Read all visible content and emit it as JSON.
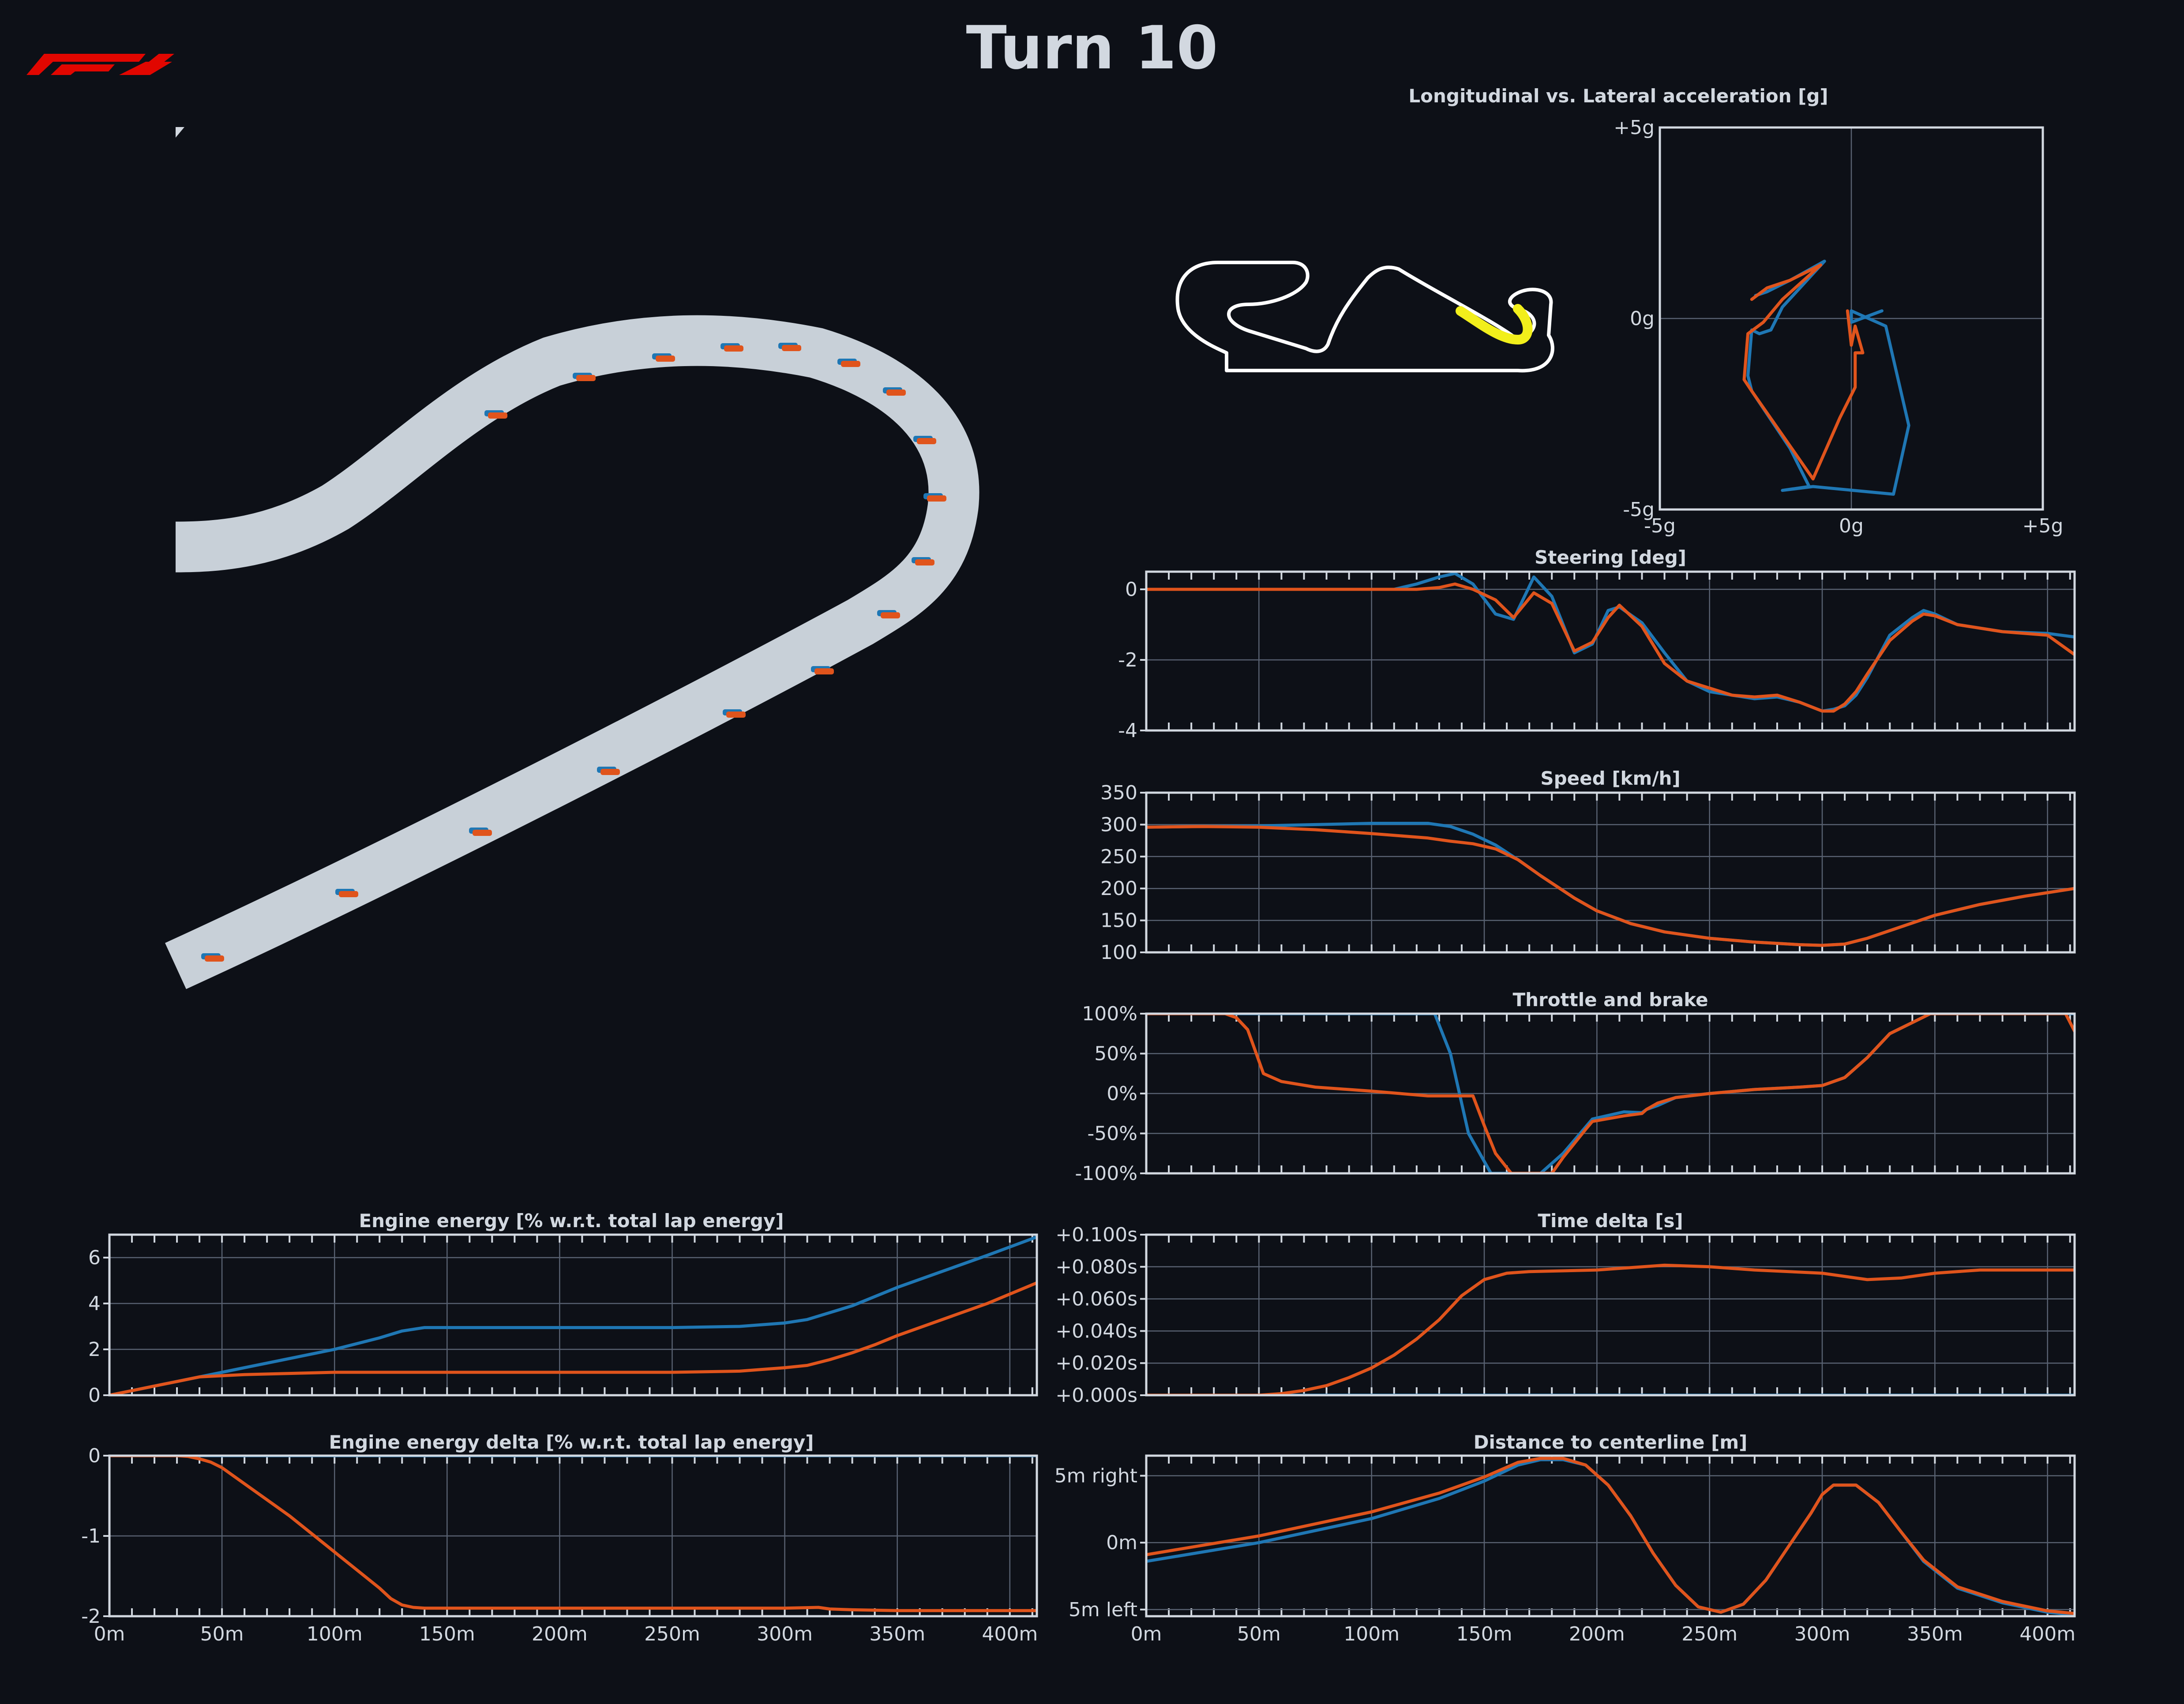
{
  "page": {
    "title": "Turn 10",
    "logo": "f1-logo"
  },
  "colors": {
    "background": "#0d1017",
    "text": "#d2d8e0",
    "driver_a": "#1f77b4",
    "driver_b": "#e0541c",
    "track": "#c8d0d8",
    "highlight": "#f2ef1b"
  },
  "chart_data": [
    {
      "id": "gg",
      "type": "line",
      "title": "Longitudinal vs. Lateral acceleration [g]",
      "xlabel": "",
      "ylabel": "",
      "xlim": [
        -5,
        5
      ],
      "ylim": [
        -5,
        5
      ],
      "x_ticks": [
        "-5g",
        "0g",
        "+5g"
      ],
      "y_ticks": [
        "+5g",
        "0g",
        "-5g"
      ],
      "grid": true,
      "series": [
        {
          "color": "#1f77b4",
          "x": [
            -2.5,
            -2.2,
            -1.6,
            -0.7,
            -1.8,
            -2.1,
            -2.4,
            -2.6,
            -2.7,
            -2.6,
            -1.6,
            -1.1,
            -1.8,
            -1.0,
            1.1,
            1.5,
            0.9,
            0.0,
            0.0,
            0.8
          ],
          "y": [
            0.6,
            0.7,
            1.0,
            1.5,
            0.3,
            -0.3,
            -0.4,
            -0.3,
            -1.5,
            -1.9,
            -3.4,
            -4.4,
            -4.5,
            -4.4,
            -4.6,
            -2.8,
            -0.2,
            0.2,
            -0.1,
            0.2
          ]
        },
        {
          "color": "#e0541c",
          "x": [
            -2.6,
            -2.2,
            -1.6,
            -0.8,
            -1.8,
            -2.3,
            -2.7,
            -2.8,
            -2.6,
            -1.0,
            -0.3,
            0.1,
            0.1,
            0.3,
            0.1,
            0.0,
            -0.1
          ],
          "y": [
            0.5,
            0.8,
            1.0,
            1.4,
            0.5,
            -0.1,
            -0.4,
            -1.6,
            -1.9,
            -4.2,
            -2.6,
            -1.8,
            -0.9,
            -0.9,
            -0.2,
            -0.7,
            0.2
          ]
        }
      ]
    },
    {
      "id": "steering",
      "type": "line",
      "title": "Steering [deg]",
      "xlabel": "",
      "ylabel": "",
      "xlim": [
        0,
        412
      ],
      "ylim": [
        -4,
        0.5
      ],
      "y_ticks": [
        0,
        -2,
        -4
      ],
      "y_tick_labels": [
        "0",
        "-2",
        "-4"
      ],
      "grid": true,
      "series": [
        {
          "color": "#1f77b4",
          "x": [
            0,
            100,
            110,
            120,
            130,
            137,
            145,
            155,
            163,
            172,
            180,
            190,
            198,
            205,
            210,
            220,
            230,
            240,
            250,
            260,
            270,
            280,
            290,
            300,
            305,
            310,
            315,
            320,
            330,
            340,
            345,
            350,
            360,
            380,
            400,
            412
          ],
          "y": [
            0,
            0,
            0,
            0.15,
            0.35,
            0.45,
            0.15,
            -0.7,
            -0.85,
            0.35,
            -0.2,
            -1.8,
            -1.55,
            -0.6,
            -0.5,
            -0.95,
            -1.8,
            -2.6,
            -2.9,
            -3.0,
            -3.1,
            -3.05,
            -3.2,
            -3.45,
            -3.4,
            -3.3,
            -3.0,
            -2.5,
            -1.3,
            -0.8,
            -0.6,
            -0.7,
            -1.0,
            -1.2,
            -1.25,
            -1.35
          ]
        },
        {
          "color": "#e0541c",
          "x": [
            0,
            100,
            110,
            120,
            130,
            137,
            145,
            155,
            163,
            172,
            180,
            190,
            198,
            205,
            210,
            220,
            230,
            240,
            250,
            260,
            270,
            280,
            290,
            300,
            305,
            310,
            315,
            320,
            330,
            340,
            345,
            350,
            360,
            380,
            400,
            412
          ],
          "y": [
            0,
            0,
            0,
            0,
            0.05,
            0.15,
            0.0,
            -0.3,
            -0.8,
            -0.1,
            -0.4,
            -1.75,
            -1.5,
            -0.8,
            -0.45,
            -1.05,
            -2.1,
            -2.6,
            -2.8,
            -3.0,
            -3.05,
            -3.0,
            -3.2,
            -3.45,
            -3.45,
            -3.25,
            -2.9,
            -2.4,
            -1.45,
            -0.9,
            -0.7,
            -0.75,
            -1.0,
            -1.2,
            -1.3,
            -1.85
          ]
        }
      ]
    },
    {
      "id": "speed",
      "type": "line",
      "title": "Speed [km/h]",
      "xlabel": "",
      "ylabel": "",
      "xlim": [
        0,
        412
      ],
      "ylim": [
        100,
        350
      ],
      "y_ticks": [
        350,
        300,
        250,
        200,
        150,
        100
      ],
      "y_tick_labels": [
        "350",
        "300",
        "250",
        "200",
        "150",
        "100"
      ],
      "grid": true,
      "series": [
        {
          "color": "#1f77b4",
          "x": [
            0,
            25,
            50,
            75,
            100,
            125,
            135,
            145,
            155,
            165,
            175,
            190,
            200,
            215,
            230,
            250,
            270,
            290,
            300,
            310,
            320,
            335,
            350,
            370,
            390,
            412
          ],
          "y": [
            296,
            297,
            298,
            300,
            302,
            302,
            297,
            285,
            268,
            245,
            220,
            185,
            165,
            145,
            132,
            122,
            116,
            112,
            111,
            113,
            122,
            140,
            158,
            175,
            188,
            200
          ]
        },
        {
          "color": "#e0541c",
          "x": [
            0,
            25,
            50,
            75,
            100,
            125,
            135,
            145,
            155,
            165,
            175,
            190,
            200,
            215,
            230,
            250,
            270,
            290,
            300,
            310,
            320,
            335,
            350,
            370,
            390,
            412
          ],
          "y": [
            296,
            297,
            296,
            292,
            286,
            279,
            274,
            270,
            262,
            245,
            220,
            185,
            165,
            145,
            132,
            122,
            116,
            112,
            111,
            113,
            122,
            140,
            158,
            175,
            188,
            200
          ]
        }
      ]
    },
    {
      "id": "throttle",
      "type": "line",
      "title": "Throttle and brake",
      "xlabel": "",
      "ylabel": "",
      "xlim": [
        0,
        412
      ],
      "ylim": [
        -100,
        100
      ],
      "y_ticks": [
        100,
        50,
        0,
        -50,
        -100
      ],
      "y_tick_labels": [
        "100%",
        "50%",
        "0%",
        "-50%",
        "-100%"
      ],
      "grid": true,
      "series": [
        {
          "color": "#1f77b4",
          "x": [
            0,
            128,
            135,
            143,
            153,
            165,
            175,
            185,
            198,
            212,
            220,
            222,
            227,
            235,
            250,
            270,
            290,
            300,
            310,
            320,
            330,
            348,
            412
          ],
          "y": [
            100,
            100,
            50,
            -50,
            -100,
            -100,
            -100,
            -75,
            -32,
            -23,
            -24,
            -20,
            -15,
            -5,
            0,
            5,
            8,
            10,
            20,
            45,
            75,
            100,
            100
          ]
        },
        {
          "color": "#e0541c",
          "x": [
            0,
            28,
            35,
            40,
            45,
            52,
            60,
            75,
            100,
            125,
            145,
            150,
            155,
            162,
            168,
            180,
            185,
            195,
            198,
            212,
            220,
            222,
            227,
            235,
            250,
            270,
            290,
            300,
            310,
            320,
            330,
            348,
            390,
            408,
            412
          ],
          "y": [
            100,
            100,
            100,
            95,
            80,
            25,
            15,
            8,
            3,
            -3,
            -3,
            -40,
            -75,
            -100,
            -100,
            -100,
            -80,
            -45,
            -35,
            -28,
            -25,
            -20,
            -12,
            -5,
            0,
            5,
            8,
            10,
            20,
            45,
            75,
            100,
            100,
            100,
            78
          ]
        }
      ]
    },
    {
      "id": "time_delta",
      "type": "line",
      "title": "Time delta [s]",
      "xlabel": "",
      "ylabel": "",
      "xlim": [
        0,
        412
      ],
      "ylim": [
        0,
        0.1
      ],
      "y_ticks": [
        0.1,
        0.08,
        0.06,
        0.04,
        0.02,
        0.0
      ],
      "y_tick_labels": [
        "+0.100s",
        "+0.080s",
        "+0.060s",
        "+0.040s",
        "+0.020s",
        "+0.000s"
      ],
      "grid": true,
      "series": [
        {
          "color": "#1f77b4",
          "x": [
            0,
            412
          ],
          "y": [
            0,
            0
          ]
        },
        {
          "color": "#e0541c",
          "x": [
            0,
            50,
            60,
            70,
            80,
            90,
            100,
            110,
            120,
            130,
            140,
            150,
            160,
            170,
            200,
            230,
            250,
            270,
            300,
            320,
            335,
            350,
            370,
            390,
            412
          ],
          "y": [
            0,
            0,
            0.001,
            0.003,
            0.006,
            0.011,
            0.017,
            0.025,
            0.035,
            0.047,
            0.062,
            0.072,
            0.076,
            0.077,
            0.078,
            0.081,
            0.08,
            0.078,
            0.076,
            0.072,
            0.073,
            0.076,
            0.078,
            0.078,
            0.078
          ]
        }
      ]
    },
    {
      "id": "engine_energy",
      "type": "line",
      "title": "Engine energy [% w.r.t. total lap energy]",
      "xlabel": "",
      "ylabel": "",
      "xlim": [
        0,
        412
      ],
      "ylim": [
        0,
        7
      ],
      "y_ticks": [
        6,
        4,
        2,
        0
      ],
      "y_tick_labels": [
        "6",
        "4",
        "2",
        "0"
      ],
      "grid": true,
      "series": [
        {
          "color": "#1f77b4",
          "x": [
            0,
            20,
            40,
            60,
            80,
            100,
            120,
            130,
            140,
            150,
            200,
            250,
            280,
            300,
            310,
            320,
            330,
            340,
            350,
            370,
            390,
            412
          ],
          "y": [
            0,
            0.4,
            0.8,
            1.2,
            1.6,
            2.0,
            2.5,
            2.8,
            2.95,
            2.95,
            2.95,
            2.95,
            3.0,
            3.15,
            3.3,
            3.6,
            3.9,
            4.3,
            4.7,
            5.4,
            6.1,
            6.9
          ]
        },
        {
          "color": "#e0541c",
          "x": [
            0,
            20,
            40,
            60,
            80,
            100,
            150,
            200,
            250,
            280,
            300,
            310,
            320,
            330,
            340,
            350,
            370,
            390,
            412
          ],
          "y": [
            0,
            0.4,
            0.8,
            0.9,
            0.95,
            1.0,
            1.0,
            1.0,
            1.0,
            1.05,
            1.2,
            1.3,
            1.55,
            1.85,
            2.2,
            2.6,
            3.3,
            4.0,
            4.9
          ]
        }
      ]
    },
    {
      "id": "energy_delta",
      "type": "line",
      "title": "Engine energy delta [% w.r.t. total lap energy]",
      "xlabel": "",
      "ylabel": "",
      "xlim": [
        0,
        412
      ],
      "ylim": [
        -2,
        0
      ],
      "y_ticks": [
        0,
        -1,
        -2
      ],
      "y_tick_labels": [
        "0",
        "-1",
        "-2"
      ],
      "grid": true,
      "x_ticks": [
        0,
        50,
        100,
        150,
        200,
        250,
        300,
        350,
        400
      ],
      "x_tick_labels": [
        "0m",
        "50m",
        "100m",
        "150m",
        "200m",
        "250m",
        "300m",
        "350m",
        "400m"
      ],
      "series": [
        {
          "color": "#1f77b4",
          "x": [
            0,
            412
          ],
          "y": [
            0,
            0
          ]
        },
        {
          "color": "#e0541c",
          "x": [
            0,
            20,
            30,
            35,
            40,
            45,
            50,
            60,
            80,
            100,
            120,
            125,
            130,
            135,
            140,
            150,
            200,
            250,
            300,
            315,
            320,
            330,
            350,
            380,
            412
          ],
          "y": [
            0,
            0,
            0,
            -0.01,
            -0.04,
            -0.08,
            -0.15,
            -0.35,
            -0.75,
            -1.2,
            -1.65,
            -1.78,
            -1.86,
            -1.89,
            -1.9,
            -1.9,
            -1.9,
            -1.9,
            -1.9,
            -1.89,
            -1.91,
            -1.92,
            -1.93,
            -1.93,
            -1.93
          ]
        }
      ]
    },
    {
      "id": "centerline",
      "type": "line",
      "title": "Distance to centerline [m]",
      "xlabel": "",
      "ylabel": "",
      "xlim": [
        0,
        412
      ],
      "ylim": [
        -5.5,
        6.5
      ],
      "y_ticks": [
        5,
        0,
        -5
      ],
      "y_tick_labels": [
        "5m right",
        "0m",
        "5m left"
      ],
      "grid": true,
      "x_ticks": [
        0,
        50,
        100,
        150,
        200,
        250,
        300,
        350,
        400
      ],
      "x_tick_labels": [
        "0m",
        "50m",
        "100m",
        "150m",
        "200m",
        "250m",
        "300m",
        "350m",
        "400m"
      ],
      "series": [
        {
          "color": "#1f77b4",
          "x": [
            0,
            50,
            100,
            130,
            150,
            165,
            175,
            185,
            195,
            205,
            215,
            225,
            235,
            245,
            255,
            265,
            275,
            285,
            295,
            300,
            305,
            315,
            325,
            335,
            345,
            360,
            380,
            400,
            412
          ],
          "y": [
            -1.4,
            0,
            1.8,
            3.3,
            4.6,
            5.8,
            6.2,
            6.2,
            5.8,
            4.3,
            2.0,
            -0.8,
            -3.2,
            -4.8,
            -5.2,
            -4.6,
            -2.8,
            -0.3,
            2.2,
            3.6,
            4.3,
            4.3,
            3.0,
            0.8,
            -1.4,
            -3.4,
            -4.5,
            -5.2,
            -5.4
          ]
        },
        {
          "color": "#e0541c",
          "x": [
            0,
            50,
            100,
            130,
            150,
            165,
            175,
            185,
            195,
            205,
            215,
            225,
            235,
            245,
            255,
            265,
            275,
            285,
            295,
            300,
            305,
            315,
            325,
            335,
            345,
            360,
            380,
            400,
            412
          ],
          "y": [
            -0.9,
            0.5,
            2.3,
            3.7,
            4.9,
            6.0,
            6.3,
            6.3,
            5.8,
            4.3,
            2.0,
            -0.8,
            -3.2,
            -4.8,
            -5.2,
            -4.6,
            -2.8,
            -0.3,
            2.2,
            3.6,
            4.3,
            4.3,
            3.0,
            0.8,
            -1.3,
            -3.3,
            -4.4,
            -5.1,
            -5.3
          ]
        }
      ]
    }
  ]
}
